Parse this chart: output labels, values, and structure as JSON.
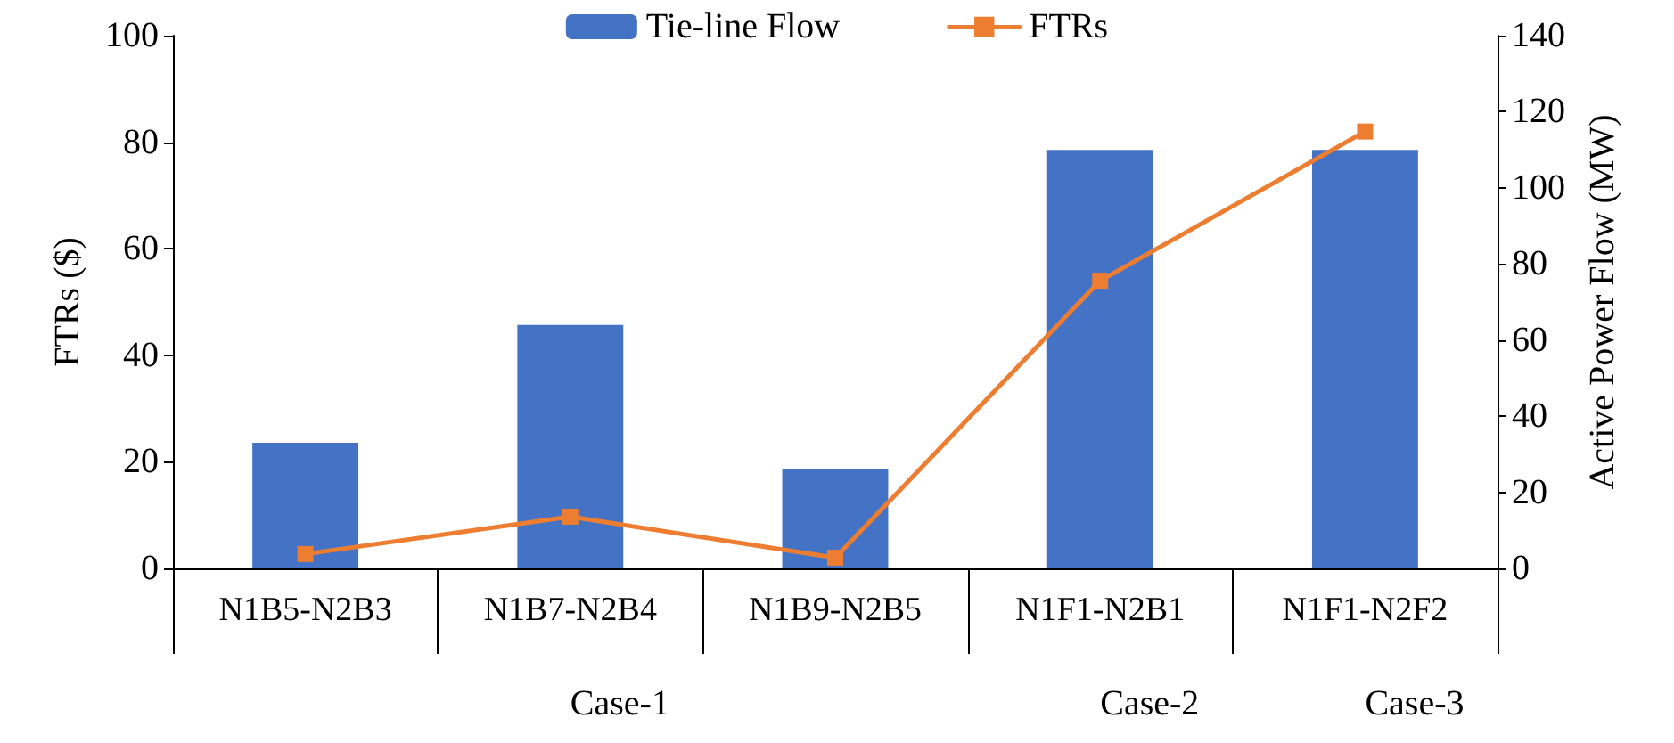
{
  "chart_data": {
    "type": "bar",
    "ylabel": "FTRs ($)",
    "y2label": "Active Power Flow (MW)",
    "categories": [
      "N1B5-N2B3",
      "N1B7-N2B4",
      "N1B9-N2B5",
      "N1F1-N2B1",
      "N1F1-N2F2"
    ],
    "series": [
      {
        "name": "Tie-line Flow",
        "axis": "y2",
        "color": "#4472c4",
        "values": [
          33,
          64,
          26,
          110,
          110
        ]
      },
      {
        "name": "FTRs",
        "type": "line",
        "axis": "y",
        "color": "#ed7d31",
        "marker": "square",
        "values": [
          2.7,
          9.7,
          2.0,
          54,
          82
        ]
      }
    ],
    "ylim": [
      0,
      100
    ],
    "yticks": [
      0,
      20,
      40,
      60,
      80,
      100
    ],
    "y2lim": [
      0,
      140
    ],
    "y2ticks": [
      0,
      20,
      40,
      60,
      80,
      100,
      120,
      140
    ],
    "annotations": [
      "Case-1",
      "Case-2",
      "Case-3"
    ],
    "grid": false,
    "legend": "top"
  }
}
